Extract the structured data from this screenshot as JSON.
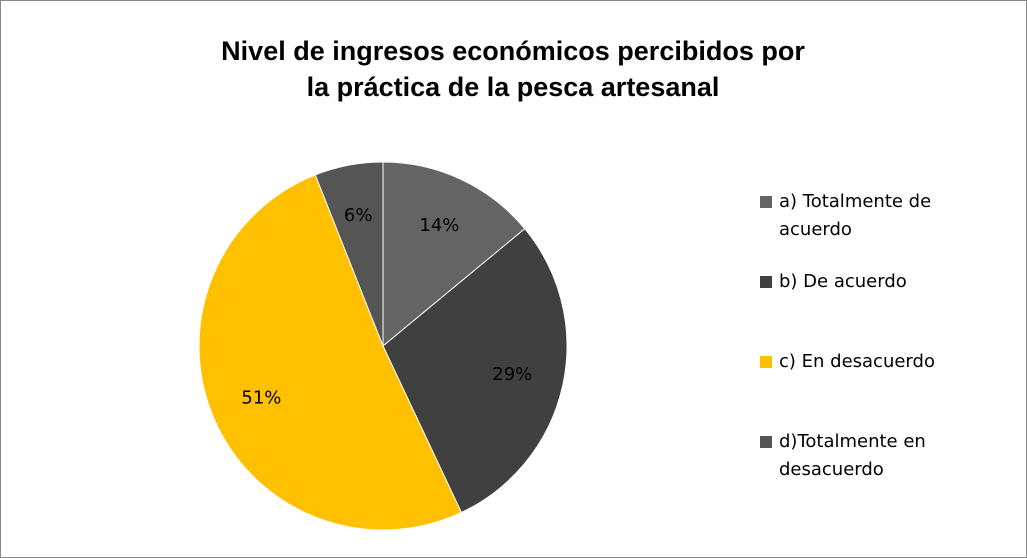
{
  "chart_data": {
    "type": "pie",
    "title": [
      "Nivel  de  ingresos económicos percibidos por",
      "la práctica de la pesca artesanal"
    ],
    "categories": [
      "a) Totalmente de acuerdo",
      "b) De acuerdo",
      "c) En desacuerdo",
      "d)Totalmente en desacuerdo"
    ],
    "values": [
      14,
      29,
      51,
      6
    ],
    "value_labels": [
      "14%",
      "29%",
      "51%",
      "6%"
    ],
    "colors": [
      "#646464",
      "#404040",
      "#ffc000",
      "#555555"
    ],
    "legend": "right"
  }
}
